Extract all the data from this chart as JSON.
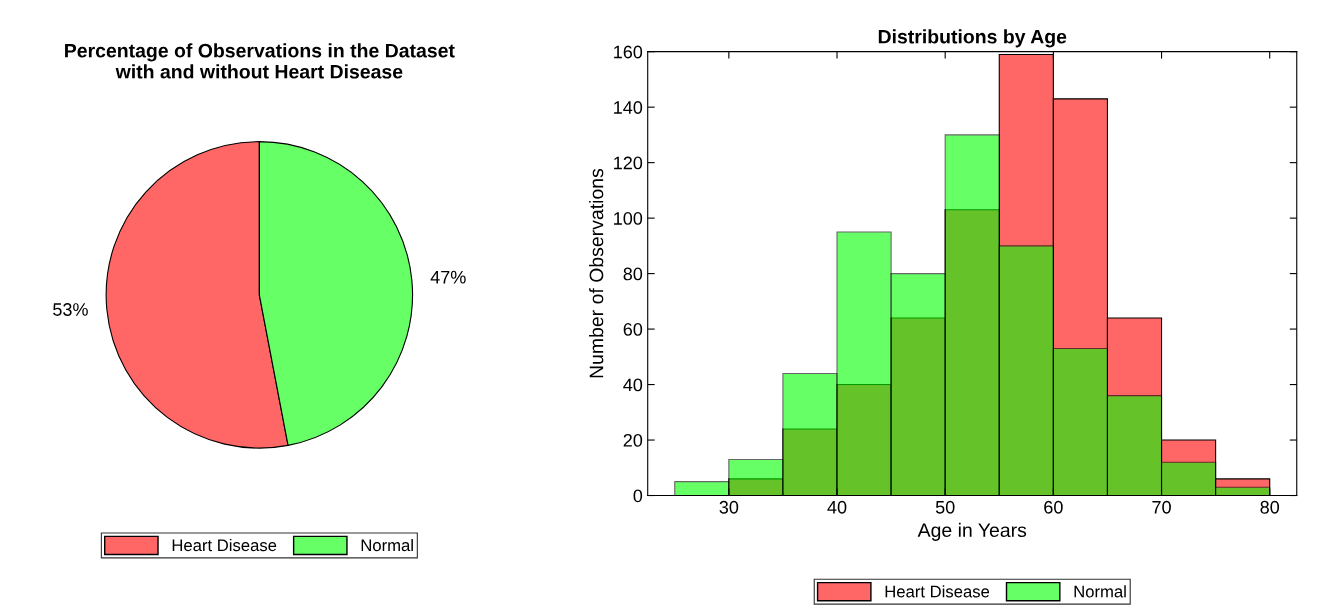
{
  "chart_data": [
    {
      "type": "pie",
      "title": "Percentage of Observations in the Dataset\nwith and without Heart Disease",
      "categories": [
        "Heart Disease",
        "Normal"
      ],
      "values": [
        53,
        47
      ],
      "colors": [
        "#ff6666",
        "#66ff66"
      ],
      "value_labels": [
        "53%",
        "47%"
      ],
      "legend": "bottom"
    },
    {
      "type": "histogram",
      "title": "Distributions by Age",
      "xlabel": "Age in Years",
      "ylabel": "Number of Observations",
      "bins": [
        25,
        30,
        35,
        40,
        45,
        50,
        55,
        60,
        65,
        70,
        75,
        80
      ],
      "series": [
        {
          "name": "Heart Disease",
          "color": "#ff6666",
          "values": [
            0,
            6,
            24,
            40,
            64,
            103,
            159,
            143,
            64,
            20,
            6
          ]
        },
        {
          "name": "Normal",
          "color": "#66ff66",
          "values": [
            5,
            13,
            44,
            95,
            80,
            130,
            90,
            53,
            36,
            12,
            3
          ]
        }
      ],
      "xlim": [
        22.5,
        82.5
      ],
      "xticks": [
        30,
        40,
        50,
        60,
        70,
        80
      ],
      "ylim": [
        0,
        160
      ],
      "yticks": [
        0,
        20,
        40,
        60,
        80,
        100,
        120,
        140,
        160
      ],
      "legend": "bottom"
    }
  ]
}
